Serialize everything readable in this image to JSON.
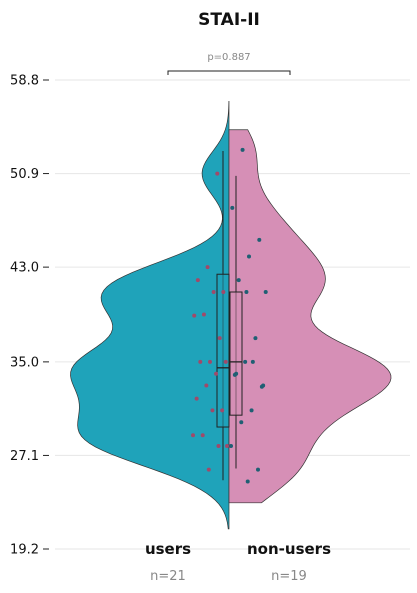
{
  "chart_data": {
    "type": "violin",
    "title": "STAI-II",
    "ylim": [
      19.2,
      58.8
    ],
    "yticks": [
      "19.2",
      "27.1",
      "35.0",
      "43.0",
      "50.9",
      "58.8"
    ],
    "grid": "horizontal",
    "series": [
      {
        "name": "users",
        "n_label": "n=21",
        "color": "#1fa3ba",
        "side": "left",
        "kde_range": [
          20.9,
          57.0
        ],
        "box": {
          "q1": 29.5,
          "median": 34.5,
          "q3": 42.4,
          "whisker_low": 25.0,
          "whisker_high": 52.8
        },
        "points": [
          25.9,
          27.9,
          28.8,
          28.8,
          30.9,
          30.9,
          31.9,
          33.0,
          34.0,
          35.0,
          35.0,
          35.0,
          37.0,
          38.9,
          39.0,
          40.9,
          40.9,
          41.9,
          43.0,
          50.9,
          27.9
        ]
      },
      {
        "name": "non-users",
        "n_label": "n=19",
        "color": "#d68fb6",
        "side": "right",
        "kde_range": [
          23.1,
          54.6
        ],
        "box": {
          "q1": 30.5,
          "median": 35.0,
          "q3": 40.9,
          "whisker_low": 26.0,
          "whisker_high": 50.7
        },
        "points": [
          24.9,
          25.9,
          27.9,
          29.9,
          30.9,
          32.9,
          33.9,
          35.0,
          37.0,
          40.9,
          41.9,
          43.9,
          45.3,
          48.0,
          52.9,
          35.0,
          33.0,
          34.0,
          40.9
        ]
      }
    ],
    "annotation": {
      "text": "p=0.887"
    }
  }
}
